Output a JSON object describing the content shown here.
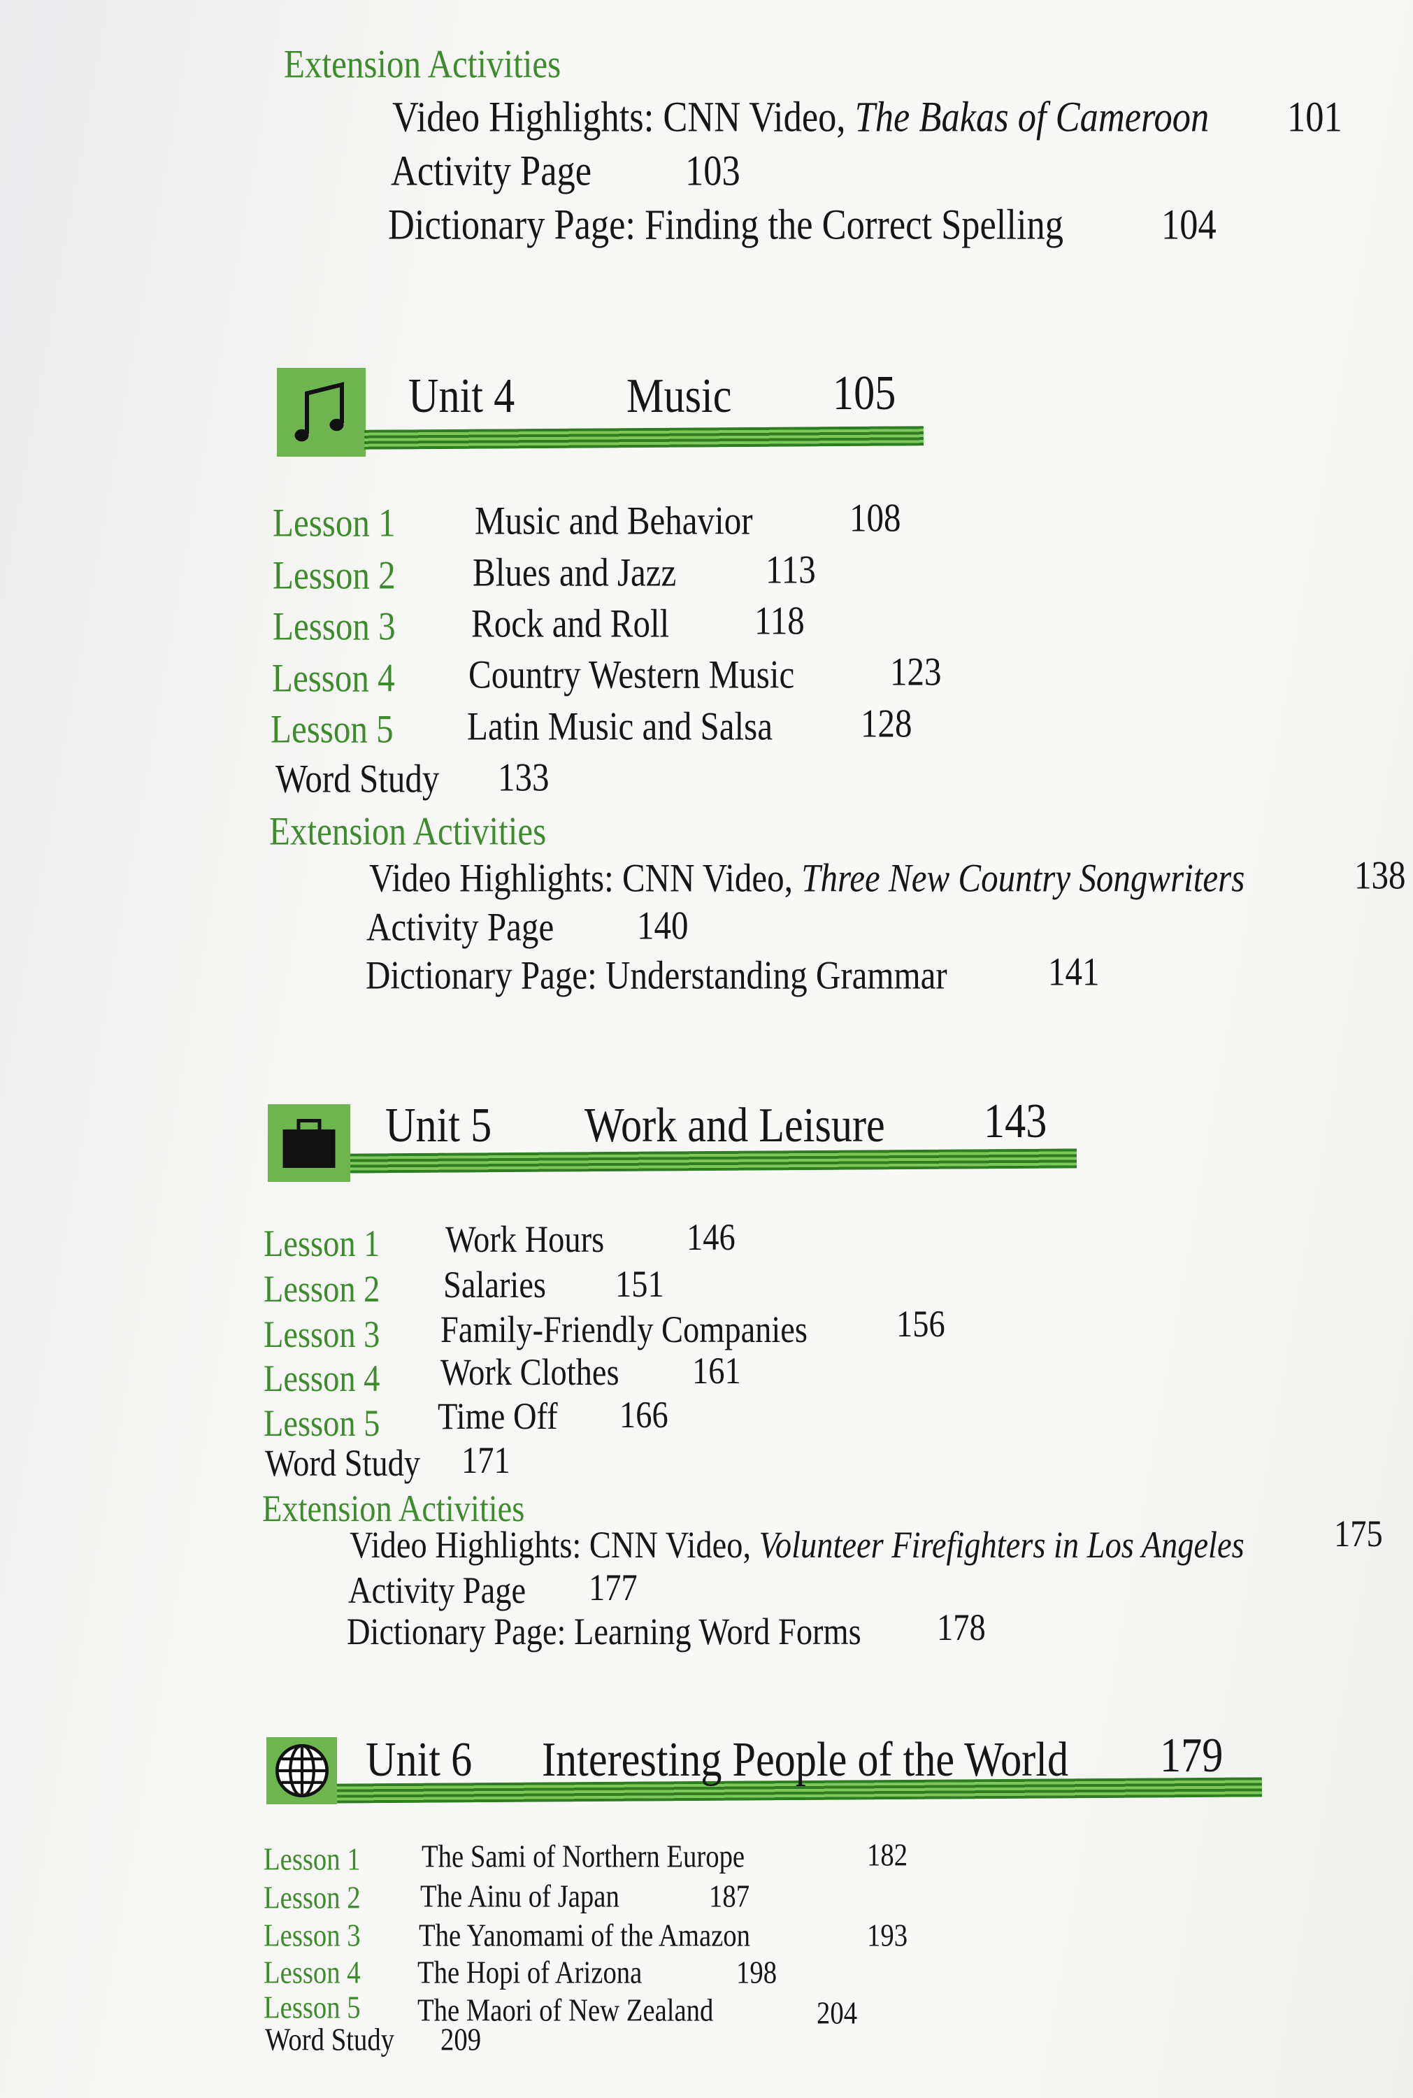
{
  "unit3_extension": {
    "heading": "Extension Activities",
    "items": [
      {
        "prefix": "Video Highlights: CNN Video, ",
        "title": "The Bakas of Cameroon",
        "page": "101"
      },
      {
        "prefix": "Activity Page",
        "title": "",
        "page": "103"
      },
      {
        "prefix": "Dictionary Page: Finding the Correct Spelling",
        "title": "",
        "page": "104"
      }
    ]
  },
  "units": [
    {
      "icon": "music-note-icon",
      "unit": "Unit 4",
      "title": "Music",
      "page": "105",
      "lessons": [
        {
          "label": "Lesson 1",
          "title": "Music and Behavior",
          "page": "108"
        },
        {
          "label": "Lesson 2",
          "title": "Blues and Jazz",
          "page": "113"
        },
        {
          "label": "Lesson 3",
          "title": "Rock and Roll",
          "page": "118"
        },
        {
          "label": "Lesson 4",
          "title": "Country Western Music",
          "page": "123"
        },
        {
          "label": "Lesson 5",
          "title": "Latin Music and Salsa",
          "page": "128"
        }
      ],
      "word_study": {
        "label": "Word Study",
        "page": "133"
      },
      "extension": {
        "heading": "Extension Activities",
        "items": [
          {
            "prefix": "Video Highlights: CNN Video, ",
            "title": "Three New Country Songwriters",
            "page": "138"
          },
          {
            "prefix": "Activity Page",
            "title": "",
            "page": "140"
          },
          {
            "prefix": "Dictionary Page: Understanding Grammar",
            "title": "",
            "page": "141"
          }
        ]
      }
    },
    {
      "icon": "briefcase-icon",
      "unit": "Unit 5",
      "title": "Work and Leisure",
      "page": "143",
      "lessons": [
        {
          "label": "Lesson 1",
          "title": "Work Hours",
          "page": "146"
        },
        {
          "label": "Lesson 2",
          "title": "Salaries",
          "page": "151"
        },
        {
          "label": "Lesson 3",
          "title": "Family-Friendly Companies",
          "page": "156"
        },
        {
          "label": "Lesson 4",
          "title": "Work Clothes",
          "page": "161"
        },
        {
          "label": "Lesson 5",
          "title": "Time Off",
          "page": "166"
        }
      ],
      "word_study": {
        "label": "Word Study",
        "page": "171"
      },
      "extension": {
        "heading": "Extension Activities",
        "items": [
          {
            "prefix": "Video Highlights: CNN Video, ",
            "title": "Volunteer Firefighters in Los Angeles",
            "page": "175"
          },
          {
            "prefix": "Activity Page",
            "title": "",
            "page": "177"
          },
          {
            "prefix": "Dictionary Page: Learning Word Forms",
            "title": "",
            "page": "178"
          }
        ]
      }
    },
    {
      "icon": "globe-icon",
      "unit": "Unit 6",
      "title": "Interesting People of the World",
      "page": "179",
      "lessons": [
        {
          "label": "Lesson 1",
          "title": "The Sami of Northern Europe",
          "page": "182"
        },
        {
          "label": "Lesson 2",
          "title": "The Ainu of Japan",
          "page": "187"
        },
        {
          "label": "Lesson 3",
          "title": "The Yanomami of the Amazon",
          "page": "193"
        },
        {
          "label": "Lesson 4",
          "title": "The Hopi of Arizona",
          "page": "198"
        },
        {
          "label": "Lesson 5",
          "title": "The Maori of New Zealand",
          "page": "204"
        }
      ],
      "word_study": {
        "label": "Word Study",
        "page": "209"
      }
    }
  ],
  "colors": {
    "accent_green": "#3d8b2c",
    "icon_bg": "#6fb54f",
    "text": "#161616"
  }
}
